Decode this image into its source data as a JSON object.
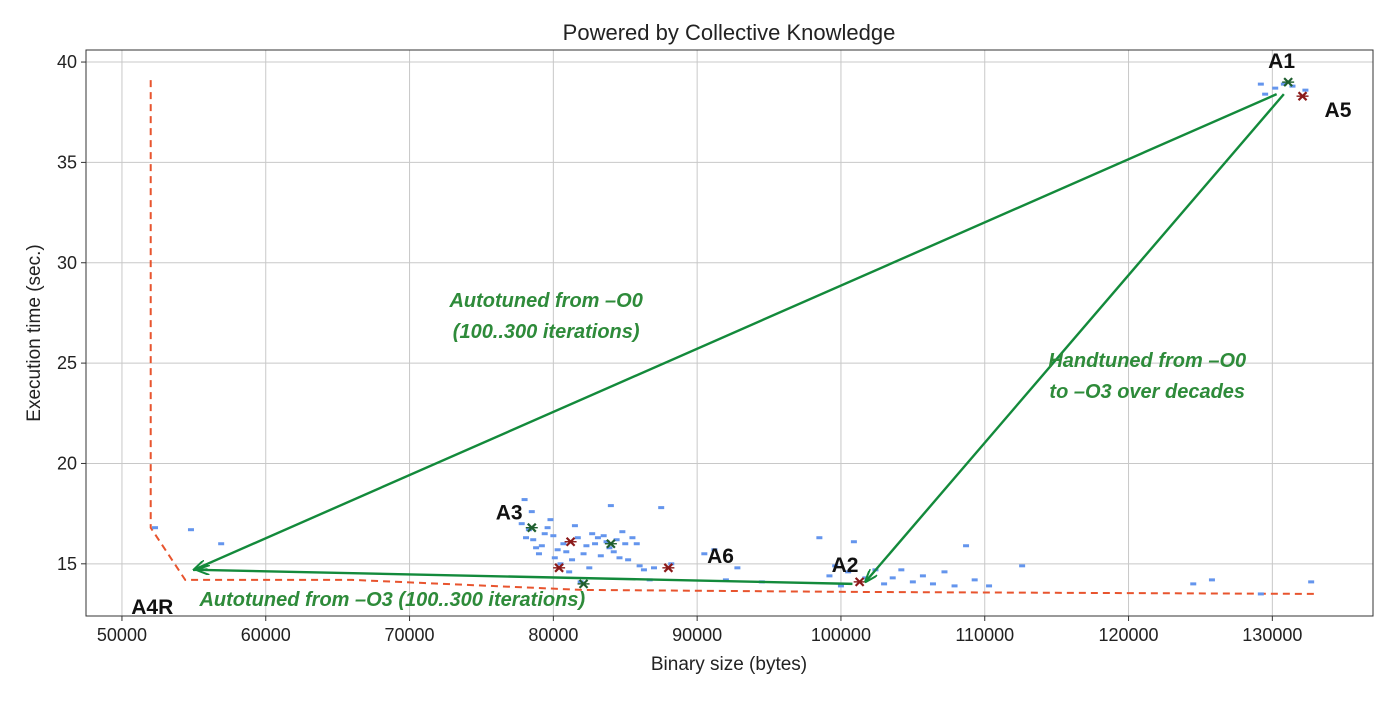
{
  "chart_data": {
    "type": "scatter",
    "title": "Powered by Collective Knowledge",
    "xlabel": "Binary size (bytes)",
    "ylabel": "Execution time (sec.)",
    "xlim": [
      47500,
      137000
    ],
    "ylim": [
      12.4,
      40.6
    ],
    "grid": true,
    "x_ticks": [
      50000,
      60000,
      70000,
      80000,
      90000,
      100000,
      110000,
      120000,
      130000
    ],
    "y_ticks": [
      15,
      20,
      25,
      30,
      35,
      40
    ],
    "colors": {
      "points": "#6495ed",
      "highlight": "#8b1a1a",
      "frontier": "#e8542e",
      "arrows": "#138a3b",
      "annotation": "#2e8b3a"
    },
    "points": [
      [
        129200,
        38.9
      ],
      [
        129500,
        38.4
      ],
      [
        130200,
        38.7
      ],
      [
        130800,
        38.9
      ],
      [
        131400,
        38.8
      ],
      [
        132300,
        38.6
      ],
      [
        52300,
        16.8
      ],
      [
        54800,
        16.7
      ],
      [
        56900,
        16.0
      ],
      [
        77800,
        17.0
      ],
      [
        78000,
        18.2
      ],
      [
        78100,
        16.3
      ],
      [
        78300,
        16.7
      ],
      [
        78500,
        17.6
      ],
      [
        78600,
        16.2
      ],
      [
        78800,
        15.8
      ],
      [
        79000,
        15.5
      ],
      [
        79200,
        15.9
      ],
      [
        79400,
        16.5
      ],
      [
        79600,
        16.8
      ],
      [
        79800,
        17.2
      ],
      [
        80000,
        16.4
      ],
      [
        80100,
        15.3
      ],
      [
        80300,
        15.7
      ],
      [
        80500,
        15.0
      ],
      [
        80700,
        16.0
      ],
      [
        80900,
        15.6
      ],
      [
        81100,
        14.6
      ],
      [
        81300,
        15.2
      ],
      [
        81500,
        16.9
      ],
      [
        81700,
        16.3
      ],
      [
        81900,
        14.1
      ],
      [
        82100,
        15.5
      ],
      [
        82300,
        15.9
      ],
      [
        82500,
        14.8
      ],
      [
        82700,
        16.5
      ],
      [
        82900,
        16.0
      ],
      [
        83100,
        16.3
      ],
      [
        83300,
        15.4
      ],
      [
        83500,
        16.4
      ],
      [
        83700,
        16.1
      ],
      [
        83900,
        15.8
      ],
      [
        84000,
        17.9
      ],
      [
        84200,
        15.6
      ],
      [
        84400,
        16.2
      ],
      [
        84600,
        15.3
      ],
      [
        84800,
        16.6
      ],
      [
        85000,
        16.0
      ],
      [
        85200,
        15.2
      ],
      [
        85500,
        16.3
      ],
      [
        85800,
        16.0
      ],
      [
        86000,
        14.9
      ],
      [
        86300,
        14.7
      ],
      [
        86700,
        14.2
      ],
      [
        87000,
        14.8
      ],
      [
        87500,
        17.8
      ],
      [
        88200,
        15.0
      ],
      [
        90500,
        15.5
      ],
      [
        91200,
        15.7
      ],
      [
        92000,
        14.2
      ],
      [
        92800,
        14.8
      ],
      [
        94500,
        14.1
      ],
      [
        98500,
        16.3
      ],
      [
        99200,
        14.4
      ],
      [
        99600,
        14.9
      ],
      [
        100000,
        13.9
      ],
      [
        100500,
        14.6
      ],
      [
        100900,
        16.1
      ],
      [
        101700,
        14.3
      ],
      [
        102400,
        14.7
      ],
      [
        103000,
        14.0
      ],
      [
        103600,
        14.3
      ],
      [
        104200,
        14.7
      ],
      [
        105000,
        14.1
      ],
      [
        105700,
        14.4
      ],
      [
        106400,
        14.0
      ],
      [
        107200,
        14.6
      ],
      [
        107900,
        13.9
      ],
      [
        108700,
        15.9
      ],
      [
        109300,
        14.2
      ],
      [
        110300,
        13.9
      ],
      [
        112600,
        14.9
      ],
      [
        124500,
        14.0
      ],
      [
        125800,
        14.2
      ],
      [
        129200,
        13.5
      ],
      [
        132700,
        14.1
      ]
    ],
    "highlighted": [
      {
        "label": "A1",
        "x": 131100,
        "y": 39.0,
        "color": "#1f5f2f"
      },
      {
        "label": "A5",
        "x": 132100,
        "y": 38.3,
        "color": "#8b1a1a"
      },
      {
        "label": "A3",
        "x": 78500,
        "y": 16.8,
        "color": "#1f5f2f"
      },
      {
        "label": "",
        "x": 81200,
        "y": 16.1,
        "color": "#8b1a1a"
      },
      {
        "label": "",
        "x": 84000,
        "y": 16.0,
        "color": "#1f5f2f"
      },
      {
        "label": "",
        "x": 80400,
        "y": 14.8,
        "color": "#8b1a1a"
      },
      {
        "label": "",
        "x": 88000,
        "y": 14.8,
        "color": "#8b1a1a"
      },
      {
        "label": "",
        "x": 82100,
        "y": 14.0,
        "color": "#1f5f2f"
      },
      {
        "label": "A2",
        "x": 101300,
        "y": 14.1,
        "color": "#8b1a1a"
      }
    ],
    "frontier": [
      [
        52000,
        39.1
      ],
      [
        52000,
        16.8
      ],
      [
        54400,
        14.2
      ],
      [
        66000,
        14.2
      ],
      [
        82000,
        13.7
      ],
      [
        101000,
        13.6
      ],
      [
        133000,
        13.5
      ]
    ],
    "labels": [
      {
        "text": "A1",
        "x": 131100,
        "y": 39.0
      },
      {
        "text": "A5",
        "x": 132100,
        "y": 38.3
      },
      {
        "text": "A3",
        "x": 78500,
        "y": 16.8
      },
      {
        "text": "A6",
        "x": 90000,
        "y": 14.8
      },
      {
        "text": "A2",
        "x": 101300,
        "y": 14.1
      },
      {
        "text": "A4R",
        "x": 54400,
        "y": 14.2
      }
    ],
    "arrows": [
      {
        "from": [
          130300,
          38.4
        ],
        "to": [
          55000,
          14.7
        ]
      },
      {
        "from": [
          130800,
          38.4
        ],
        "to": [
          101700,
          14.1
        ]
      },
      {
        "from": [
          100800,
          14.0
        ],
        "to": [
          55200,
          14.7
        ]
      }
    ],
    "annotations": [
      {
        "lines": [
          "Autotuned from –O0",
          "(100..300 iterations)"
        ],
        "x": 79500,
        "y": 27.8
      },
      {
        "lines": [
          "Handtuned from –O0",
          "to –O3 over decades"
        ],
        "x": 121300,
        "y": 24.8
      },
      {
        "lines": [
          "Autotuned from –O3 (100..300 iterations)"
        ],
        "x": 68800,
        "y": 12.9
      }
    ]
  }
}
